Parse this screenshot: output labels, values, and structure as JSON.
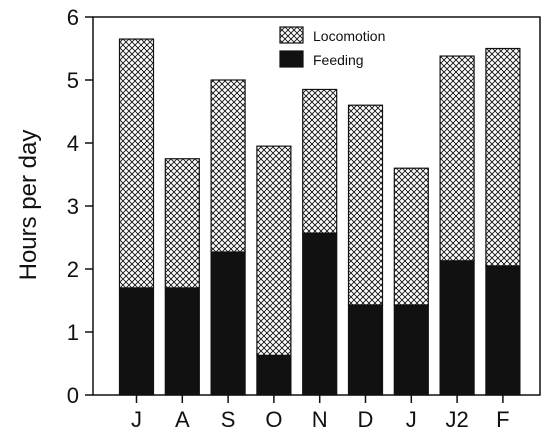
{
  "chart_data": {
    "type": "bar",
    "stacked": true,
    "title": "",
    "xlabel": "",
    "ylabel": "Hours per day",
    "ylim": [
      0,
      6
    ],
    "yticks": [
      "0",
      "1",
      "2",
      "3",
      "4",
      "5",
      "6"
    ],
    "categories": [
      "J",
      "A",
      "S",
      "O",
      "N",
      "D",
      "J",
      "J2",
      "F"
    ],
    "series": [
      {
        "name": "Feeding",
        "values": [
          1.7,
          1.7,
          2.27,
          0.63,
          2.57,
          1.43,
          1.43,
          2.13,
          2.05
        ],
        "color": "#111111"
      },
      {
        "name": "Locomotion",
        "values": [
          3.95,
          2.05,
          2.73,
          3.32,
          2.28,
          3.17,
          2.17,
          3.25,
          3.45
        ],
        "pattern": "crosshatch"
      }
    ],
    "legend": {
      "position": "top-center",
      "entries": [
        "Locomotion",
        "Feeding"
      ]
    },
    "grid": false
  }
}
